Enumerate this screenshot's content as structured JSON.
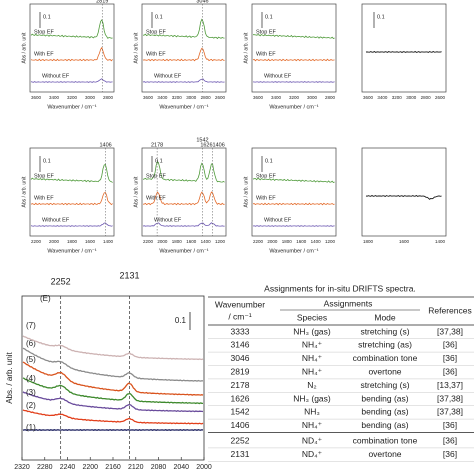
{
  "panels": [
    {
      "peaks": [
        "2819"
      ],
      "scale": "0.1",
      "labels": [
        "Stop EF",
        "With EF",
        "Without EF"
      ],
      "ticks": [
        3600,
        3400,
        3200,
        3000,
        2800
      ],
      "xlabel": "Wavenumber / cm⁻¹",
      "ylabel": "Abs / arb. unit"
    },
    {
      "peaks": [
        "3046"
      ],
      "scale": "0.1",
      "labels": [
        "Stop EF",
        "With EF",
        "Without EF"
      ],
      "ticks": [
        3600,
        3400,
        3200,
        3000,
        2800,
        2600
      ],
      "xlabel": "Wavenumber / cm⁻¹",
      "ylabel": "Abs / arb. unit"
    },
    {
      "peaks": [],
      "scale": "0.1",
      "labels": [
        "Stop EF",
        "With EF",
        "Without EF"
      ],
      "ticks": [
        3600,
        3400,
        3200,
        3000,
        2800
      ],
      "xlabel": "Wavenumber / cm⁻¹",
      "ylabel": "Abs / arb. unit"
    },
    {
      "peaks": [],
      "scale": "0.1",
      "labels": [],
      "ticks": [
        3600,
        3400,
        3200,
        3000,
        2800,
        2600
      ]
    },
    {
      "peaks": [
        "1406"
      ],
      "scale": "0.1",
      "labels": [
        "Stop EF",
        "With EF",
        "Without EF"
      ],
      "ticks": [
        2200,
        2000,
        1800,
        1600,
        1400
      ],
      "xlabel": "Wavenumber / cm⁻¹",
      "ylabel": "Abs / arb. unit"
    },
    {
      "peaks": [
        "2178",
        "1542",
        "16261406"
      ],
      "scale": "0.1",
      "labels": [
        "Stop EF",
        "With EF",
        "Without EF"
      ],
      "ticks": [
        2200,
        2000,
        1800,
        1600,
        1400,
        1200
      ],
      "xlabel": "Wavenumber / cm⁻¹",
      "ylabel": "Abs / arb. unit"
    },
    {
      "peaks": [],
      "scale": "0.1",
      "labels": [
        "Stop EF",
        "With EF",
        "Without EF"
      ],
      "ticks": [
        2200,
        2000,
        1800,
        1600,
        1400,
        1200
      ],
      "xlabel": "Wavenumber / cm⁻¹",
      "ylabel": "Abs / arb. unit"
    },
    {
      "peaks": [],
      "scale": "",
      "labels": [],
      "ticks": [
        1800,
        1600,
        1400
      ]
    }
  ],
  "bottom": {
    "panel_label": "(E)",
    "scale": "0.1",
    "ylabel": "Abs. / arb. unit",
    "markers": [
      2252,
      2131
    ],
    "ticks": [
      2320,
      2280,
      2240,
      2200,
      2160,
      2120,
      2080,
      2040,
      2000
    ],
    "curves": [
      {
        "name": "(1)",
        "color": "#1b1f5e"
      },
      {
        "name": "(2)",
        "color": "#e2401c"
      },
      {
        "name": "(3)",
        "color": "#6a4c9c"
      },
      {
        "name": "(4)",
        "color": "#3f8a2e"
      },
      {
        "name": "(5)",
        "color": "#d9541e"
      },
      {
        "name": "(6)",
        "color": "#8c8c8c"
      },
      {
        "name": "(7)",
        "color": "#cdb3b3"
      }
    ]
  },
  "table": {
    "title": "Assignments for in-situ DRIFTS spectra.",
    "header": {
      "wavenumber": "Wavenumber",
      "unit": "/ cm⁻¹",
      "assignments": "Assignments",
      "species": "Species",
      "mode": "Mode",
      "references": "References"
    },
    "rows": [
      [
        3333,
        "NH₃ (gas)",
        "stretching (s)",
        "[37,38]"
      ],
      [
        3146,
        "NH₄⁺",
        "stretching (as)",
        "[36]"
      ],
      [
        3046,
        "NH₄⁺",
        "combination tone",
        "[36]"
      ],
      [
        2819,
        "NH₄⁺",
        "overtone",
        "[36]"
      ],
      [
        2178,
        "N₂",
        "stretching (s)",
        "[13,37]"
      ],
      [
        1626,
        "NH₃ (gas)",
        "bending (as)",
        "[37,38]"
      ],
      [
        1542,
        "NH₃",
        "bending (as)",
        "[37,38]"
      ],
      [
        1406,
        "NH₄⁺",
        "bending (as)",
        "[36]"
      ],
      [
        2252,
        "ND₄⁺",
        "combination tone",
        "[36]"
      ],
      [
        2131,
        "ND₄⁺",
        "overtone",
        "[36]"
      ]
    ]
  }
}
